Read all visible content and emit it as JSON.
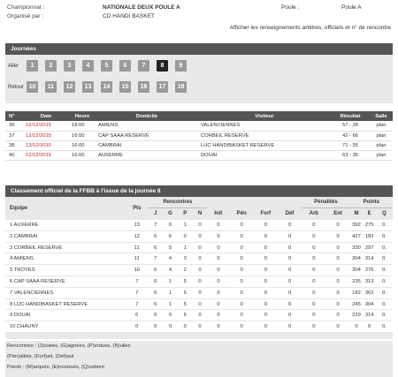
{
  "header": {
    "championnat_label": "Championnat :",
    "championnat_value": "NATIONALE DEUX POULE A",
    "organise_label": "Organisé par :",
    "organise_value": "CD HANDI BASKET",
    "poule_label": "Poule :",
    "poule_value": "Poule A",
    "show_info_link": "Afficher les renseignements arbitres, officiels et n° de rencontre"
  },
  "journees": {
    "title": "Journées",
    "aller_label": "Aller",
    "retour_label": "Retour",
    "aller": [
      "1",
      "2",
      "3",
      "4",
      "5",
      "6",
      "7",
      "8",
      "9"
    ],
    "retour": [
      "10",
      "11",
      "12",
      "13",
      "14",
      "15",
      "16",
      "17",
      "18"
    ],
    "active": "8"
  },
  "matches": {
    "columns": [
      "N°",
      "Date",
      "Heure",
      "Domicile",
      "Visiteur",
      "Résultat",
      "Salle"
    ],
    "rows": [
      {
        "num": "36",
        "date": "12/12/2015",
        "heure": "18:00",
        "domicile": "AMIENS",
        "visiteur": "VALENCIENNES",
        "resultat": "57 - 28",
        "salle": "plan"
      },
      {
        "num": "37",
        "date": "12/12/2015",
        "heure": "16:00",
        "domicile": "CAP SAAA RESERVE",
        "visiteur": "CORBEIL RESERVE",
        "resultat": "42 - 66",
        "salle": "plan"
      },
      {
        "num": "38",
        "date": "13/12/2015",
        "heure": "16:00",
        "domicile": "CAMBRAI",
        "visiteur": "LUC HANDIBASKET RESERVE",
        "resultat": "71 - 55",
        "salle": "plan"
      },
      {
        "num": "40",
        "date": "12/12/2015",
        "heure": "16:00",
        "domicile": "AUXERRE",
        "visiteur": "DOUAI",
        "resultat": "63 - 35",
        "salle": "plan"
      }
    ]
  },
  "classement": {
    "title": "Classement officiel de la FFBB à l'issue de la journée 8",
    "head_equipe": "Equipe",
    "head_pts": "Pts",
    "head_rencontres": "Rencontres",
    "head_penalites": "Pénalités",
    "head_points": "Points",
    "sub_rencontres": [
      "J",
      "G",
      "P",
      "N"
    ],
    "sub_misc": [
      "Init",
      "Pén",
      "Forf",
      "Déf"
    ],
    "sub_penalites": [
      "Arb",
      "Ent"
    ],
    "sub_points": [
      "M",
      "E",
      "Q"
    ],
    "rows": [
      {
        "team": "1 AUXERRE",
        "pts": "13",
        "j": "7",
        "g": "6",
        "p": "1",
        "n": "0",
        "init": "0",
        "pen": "0",
        "forf": "0",
        "def": "0",
        "arb": "0",
        "ent": "0",
        "m": "392",
        "e": "275",
        "q": "0."
      },
      {
        "team": "2 CAMBRAI",
        "pts": "12",
        "j": "6",
        "g": "6",
        "p": "0",
        "n": "0",
        "init": "0",
        "pen": "0",
        "forf": "0",
        "def": "0",
        "arb": "0",
        "ent": "0",
        "m": "427",
        "e": "182",
        "q": "0."
      },
      {
        "team": "3 CORBEIL RESERVE",
        "pts": "11",
        "j": "6",
        "g": "5",
        "p": "1",
        "n": "0",
        "init": "0",
        "pen": "0",
        "forf": "0",
        "def": "0",
        "arb": "0",
        "ent": "0",
        "m": "330",
        "e": "297",
        "q": "0."
      },
      {
        "team": "4 AMIENS",
        "pts": "11",
        "j": "7",
        "g": "4",
        "p": "3",
        "n": "0",
        "init": "0",
        "pen": "0",
        "forf": "0",
        "def": "0",
        "arb": "0",
        "ent": "0",
        "m": "304",
        "e": "314",
        "q": "0."
      },
      {
        "team": "5 TROYES",
        "pts": "10",
        "j": "6",
        "g": "4",
        "p": "2",
        "n": "0",
        "init": "0",
        "pen": "0",
        "forf": "0",
        "def": "0",
        "arb": "0",
        "ent": "0",
        "m": "304",
        "e": "276",
        "q": "0."
      },
      {
        "team": "6 CAP SAAA RESERVE",
        "pts": "7",
        "j": "6",
        "g": "1",
        "p": "5",
        "n": "0",
        "init": "0",
        "pen": "0",
        "forf": "0",
        "def": "0",
        "arb": "0",
        "ent": "0",
        "m": "235",
        "e": "313",
        "q": "0."
      },
      {
        "team": "7 VALENCIENNES",
        "pts": "7",
        "j": "6",
        "g": "1",
        "p": "5",
        "n": "0",
        "init": "0",
        "pen": "0",
        "forf": "0",
        "def": "0",
        "arb": "0",
        "ent": "0",
        "m": "182",
        "e": "362",
        "q": "0."
      },
      {
        "team": "8 LUC HANDIBASKET RESERVE",
        "pts": "7",
        "j": "6",
        "g": "1",
        "p": "5",
        "n": "0",
        "init": "0",
        "pen": "0",
        "forf": "0",
        "def": "0",
        "arb": "0",
        "ent": "0",
        "m": "245",
        "e": "304",
        "q": "0."
      },
      {
        "team": "9 DOUAI",
        "pts": "6",
        "j": "6",
        "g": "0",
        "p": "6",
        "n": "0",
        "init": "0",
        "pen": "0",
        "forf": "0",
        "def": "0",
        "arb": "0",
        "ent": "0",
        "m": "229",
        "e": "314",
        "q": "0."
      },
      {
        "team": "10 CHAUNY",
        "pts": "0",
        "j": "0",
        "g": "0",
        "p": "0",
        "n": "0",
        "init": "0",
        "pen": "0",
        "forf": "0",
        "def": "0",
        "arb": "0",
        "ent": "0",
        "m": "0",
        "e": "0",
        "q": "0."
      }
    ]
  },
  "legend": {
    "line1": "Rencontres : (J)ouées, (G)agnées, (P)erdues, (N)ulles",
    "line2": "(Pén)alités, (Forf)ait, (Déf)aut",
    "line3": "Points : (M)arqués, (E)ncaissés, (Q)uotient"
  },
  "colors": {
    "panel_header": "#555555",
    "panel_bg": "#e9e9e9",
    "button": "#9a9a9a",
    "button_active": "#222222",
    "date_red": "#cc2222"
  }
}
